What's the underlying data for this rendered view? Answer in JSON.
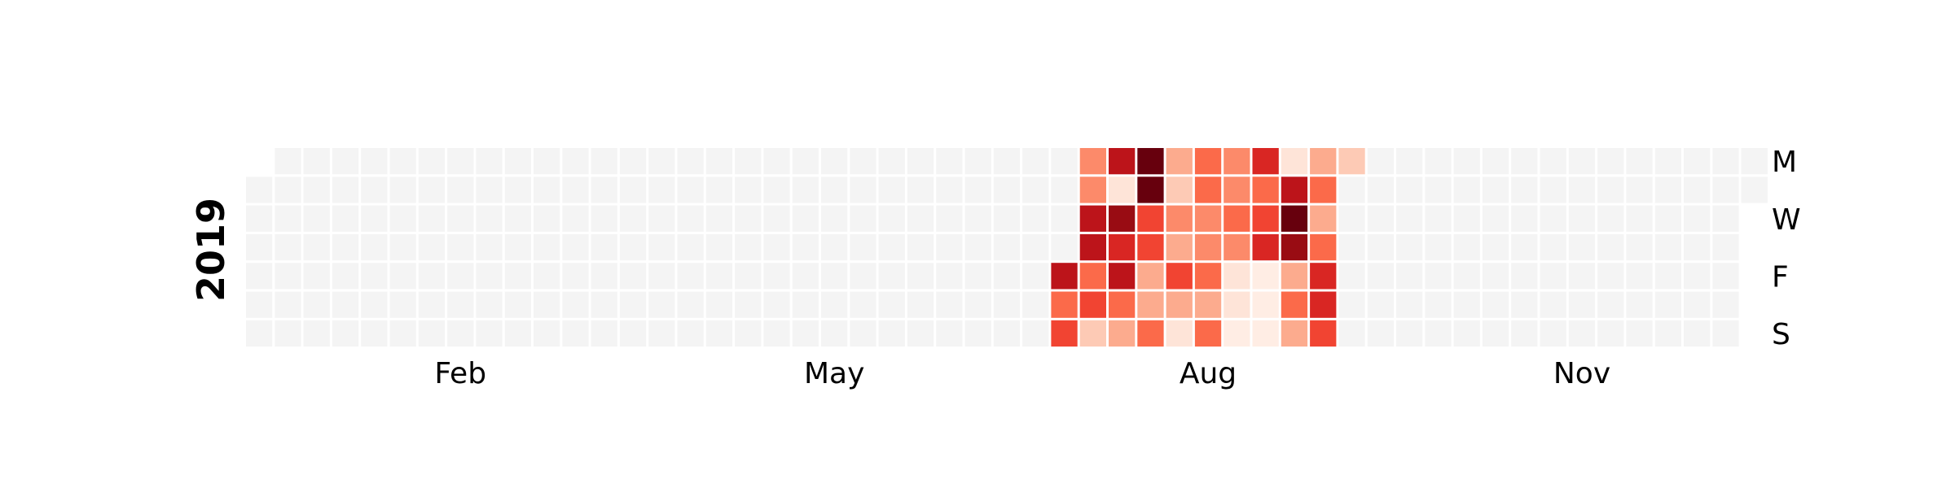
{
  "chart_data": {
    "type": "heatmap",
    "subtype": "calendar",
    "year": "2019",
    "month_labels": [
      {
        "label": "Feb",
        "week": 7
      },
      {
        "label": "May",
        "week": 20
      },
      {
        "label": "Aug",
        "week": 33
      },
      {
        "label": "Nov",
        "week": 46
      }
    ],
    "day_labels": [
      {
        "label": "M",
        "weekday": 0
      },
      {
        "label": "W",
        "weekday": 2
      },
      {
        "label": "F",
        "weekday": 4
      },
      {
        "label": "S",
        "weekday": 6
      }
    ],
    "first_weekday": 1,
    "days_in_year": 365,
    "empty_color": "#f4f4f4",
    "colormap": "Reds",
    "value_range": [
      0,
      10
    ],
    "active_weeks": [
      {
        "week": 28,
        "values": [
          null,
          null,
          null,
          null,
          8,
          5,
          6
        ]
      },
      {
        "week": 29,
        "values": [
          4,
          4,
          8,
          8,
          5,
          6,
          2
        ]
      },
      {
        "week": 30,
        "values": [
          8,
          1,
          9,
          7,
          8,
          5,
          3
        ]
      },
      {
        "week": 31,
        "values": [
          10,
          10,
          6,
          6,
          3,
          3,
          5
        ]
      },
      {
        "week": 32,
        "values": [
          3,
          2,
          4,
          3,
          6,
          3,
          1
        ]
      },
      {
        "week": 33,
        "values": [
          5,
          5,
          4,
          4,
          5,
          3,
          5
        ]
      },
      {
        "week": 34,
        "values": [
          4,
          4,
          5,
          4,
          1,
          1,
          0.5
        ]
      },
      {
        "week": 35,
        "values": [
          7,
          5,
          6,
          7,
          0.5,
          0.5,
          0.5
        ]
      },
      {
        "week": 36,
        "values": [
          1,
          8,
          10,
          9,
          3,
          5,
          3
        ]
      },
      {
        "week": 37,
        "values": [
          3,
          5,
          3,
          5,
          7,
          7,
          6
        ]
      },
      {
        "week": 38,
        "values": [
          2,
          null,
          null,
          null,
          null,
          null,
          null
        ]
      }
    ]
  }
}
